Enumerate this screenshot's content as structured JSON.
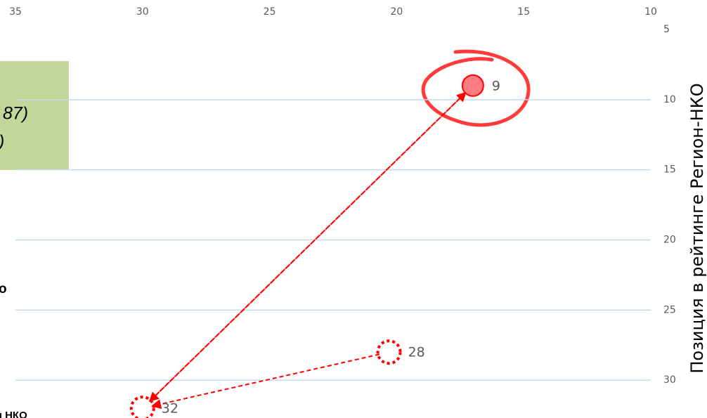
{
  "chart_data": {
    "type": "scatter",
    "x": [
      30,
      20.3,
      17
    ],
    "values": [
      32,
      28,
      9
    ],
    "point_styles": [
      "dotted",
      "dotted",
      "filled"
    ],
    "color": "#ff0000",
    "fill_color": "#ff7c80",
    "grid_color": "#c5d9ea",
    "xlim": [
      35,
      10
    ],
    "xticks": [
      35,
      30,
      25,
      20,
      15,
      10
    ],
    "ylim": [
      5,
      35
    ],
    "yticks": [
      5,
      10,
      15,
      20,
      25,
      30
    ],
    "grid": true,
    "arrows": [
      [
        1,
        0
      ],
      [
        0,
        2
      ],
      [
        2,
        0
      ]
    ],
    "ylabel": "Позиция в рейтинге Регион-НКО",
    "annotations": [
      "87)",
      ")",
      "о",
      "сти НКО"
    ]
  }
}
